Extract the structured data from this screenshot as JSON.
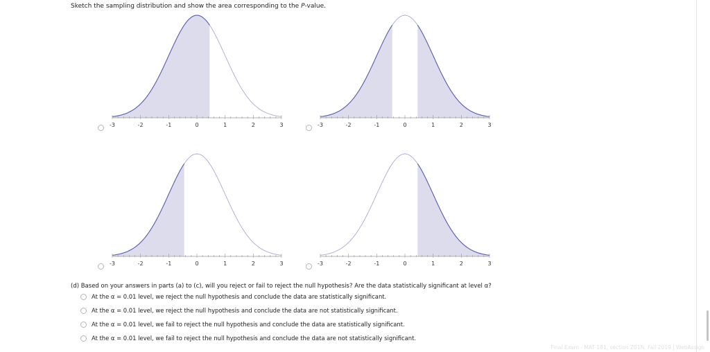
{
  "prompt": {
    "before": "Sketch the sampling distribution and show the area corresponding to the ",
    "italic": "P",
    "after": "-value."
  },
  "graphs": [
    {
      "shade": [
        [
          -3,
          0.45
        ]
      ],
      "tick_labels": [
        "-3",
        "-2",
        "-1",
        "0",
        "1",
        "2",
        "3"
      ]
    },
    {
      "shade": [
        [
          -3,
          -0.45
        ],
        [
          0.45,
          3
        ]
      ],
      "tick_labels": [
        "-3",
        "-2",
        "-1",
        "0",
        "1",
        "2",
        "3"
      ]
    },
    {
      "shade": [
        [
          -3,
          -0.45
        ]
      ],
      "tick_labels": [
        "-3",
        "-2",
        "-1",
        "0",
        "1",
        "2",
        "3"
      ]
    },
    {
      "shade": [
        [
          0.45,
          3
        ]
      ],
      "tick_labels": [
        "-3",
        "-2",
        "-1",
        "0",
        "1",
        "2",
        "3"
      ]
    }
  ],
  "colors": {
    "fill": "#dcdcec",
    "curve": "#5a5fae",
    "curve_light": "#a9a9d3",
    "axis": "#9a9a9a"
  },
  "question": "(d) Based on your answers in parts (a) to (c), will you reject or fail to reject the null hypothesis? Are the data statistically significant at level α?",
  "options": [
    "At the α = 0.01 level, we reject the null hypothesis and conclude the data are statistically significant.",
    "At the α = 0.01 level, we reject the null hypothesis and conclude the data are not statistically significant.",
    "At the α = 0.01 level, we fail to reject the null hypothesis and conclude the data are statistically significant.",
    "At the α = 0.01 level, we fail to reject the null hypothesis and conclude the data are not statistically significant."
  ],
  "footer": "Final Exam - MAT 181, section Z01N, Fall 2019 | WebAssign"
}
